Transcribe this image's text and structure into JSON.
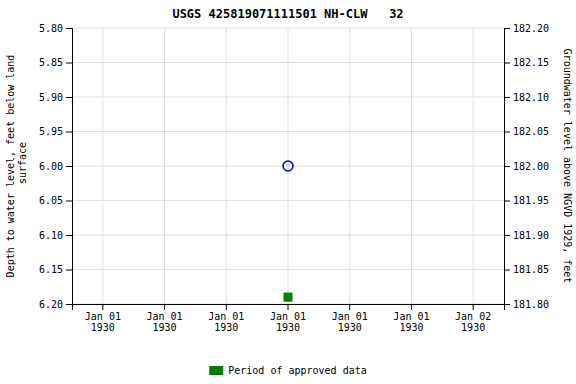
{
  "chart_data": {
    "type": "scatter",
    "title": "USGS 425819071111501 NH-CLW   32",
    "ylabel": "Depth to water level, feet below land\n surface",
    "y2label": "Groundwater level above NGVD 1929, feet",
    "categories": [
      "Jan 01\n1930",
      "Jan 01\n1930",
      "Jan 01\n1930",
      "Jan 01\n1930",
      "Jan 01\n1930",
      "Jan 01\n1930",
      "Jan 02\n1930"
    ],
    "series": [
      {
        "color": "#0000cc",
        "marker": "circle",
        "values": [
          null,
          null,
          null,
          6.0,
          null,
          null,
          null
        ]
      },
      {
        "name": "Period of approved data",
        "color": "#008000",
        "marker": "square",
        "values": [
          null,
          null,
          null,
          6.19,
          null,
          null,
          null
        ]
      }
    ],
    "ylim": [
      6.2,
      5.8
    ],
    "yticks": [
      {
        "value": 5.8,
        "label": "5.80"
      },
      5.85,
      {
        "value": 5.9,
        "label": "5.90"
      },
      5.95,
      {
        "value": 6.0,
        "label": "6.00"
      },
      6.05,
      {
        "value": 6.1,
        "label": "6.10"
      },
      6.15,
      {
        "value": 6.2,
        "label": "6.20"
      }
    ],
    "y2lim": [
      181.8,
      182.2
    ],
    "y2ticks": [
      {
        "value": 182.2,
        "label": "182.20"
      },
      182.15,
      {
        "value": 182.1,
        "label": "182.10"
      },
      182.05,
      {
        "value": 182.0,
        "label": "182.00"
      },
      181.95,
      {
        "value": 181.9,
        "label": "181.90"
      },
      181.85,
      {
        "value": 181.8,
        "label": "181.80"
      }
    ],
    "grid": true,
    "legend": "bottom"
  }
}
